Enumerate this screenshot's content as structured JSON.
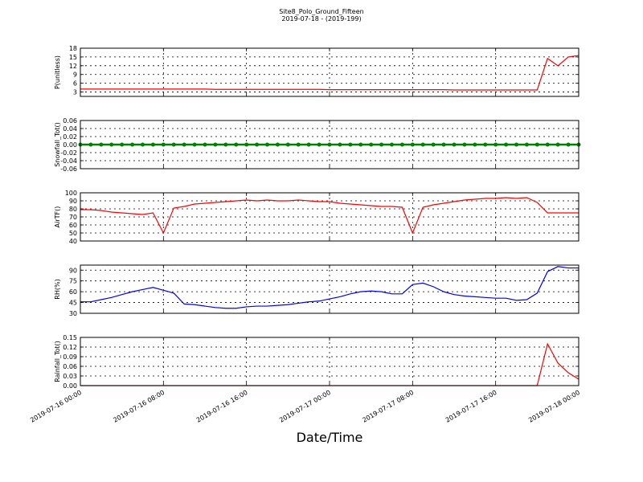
{
  "chart_data": [
    {
      "type": "line",
      "title": "Site8_Polo_Ground_Fifteen",
      "subtitle": "2019-07-18 - (2019-199)",
      "ylabel": "P(unitless)",
      "color": "#ff0000",
      "grid": true,
      "ylim": [
        1.5,
        18
      ],
      "yticks": [
        3,
        6,
        9,
        12,
        15,
        18
      ],
      "x": [
        "2019-07-16 00:00",
        "2019-07-16 01:00",
        "2019-07-16 02:00",
        "2019-07-16 03:00",
        "2019-07-16 04:00",
        "2019-07-16 05:00",
        "2019-07-16 06:00",
        "2019-07-16 07:00",
        "2019-07-16 08:00",
        "2019-07-16 09:00",
        "2019-07-16 10:00",
        "2019-07-16 11:00",
        "2019-07-16 12:00",
        "2019-07-16 13:00",
        "2019-07-16 14:00",
        "2019-07-16 15:00",
        "2019-07-16 16:00",
        "2019-07-16 17:00",
        "2019-07-16 18:00",
        "2019-07-16 19:00",
        "2019-07-16 20:00",
        "2019-07-16 21:00",
        "2019-07-16 22:00",
        "2019-07-16 23:00",
        "2019-07-17 00:00",
        "2019-07-17 01:00",
        "2019-07-17 02:00",
        "2019-07-17 03:00",
        "2019-07-17 04:00",
        "2019-07-17 05:00",
        "2019-07-17 06:00",
        "2019-07-17 07:00",
        "2019-07-17 08:00",
        "2019-07-17 09:00",
        "2019-07-17 10:00",
        "2019-07-17 11:00",
        "2019-07-17 12:00",
        "2019-07-17 13:00",
        "2019-07-17 14:00",
        "2019-07-17 15:00",
        "2019-07-17 16:00",
        "2019-07-17 17:00",
        "2019-07-17 18:00",
        "2019-07-17 19:00",
        "2019-07-17 20:00",
        "2019-07-17 21:00",
        "2019-07-17 22:00",
        "2019-07-17 23:00",
        "2019-07-18 00:00"
      ],
      "values": [
        4,
        4,
        4,
        4,
        4,
        4,
        4,
        4,
        4,
        4,
        4,
        4,
        4,
        3.9,
        3.9,
        3.9,
        3.9,
        3.9,
        3.9,
        3.9,
        3.9,
        3.9,
        3.9,
        3.9,
        3.8,
        3.8,
        3.8,
        3.8,
        3.8,
        3.8,
        3.8,
        3.8,
        3.8,
        3.8,
        3.8,
        3.8,
        3.7,
        3.7,
        3.7,
        3.7,
        3.7,
        3.7,
        3.7,
        3.7,
        3.7,
        14.5,
        12,
        15,
        15.5
      ]
    },
    {
      "type": "line",
      "ylabel": "Snowfall_Tot()",
      "color": "#008000",
      "grid": true,
      "marker": true,
      "ylim": [
        -0.06,
        0.06
      ],
      "yticks": [
        -0.06,
        -0.04,
        -0.02,
        {
          "value": 0,
          "label": "0.00"
        },
        0.02,
        0.04,
        0.06
      ],
      "x": [
        "2019-07-16 00:00",
        "2019-07-16 01:00",
        "2019-07-16 02:00",
        "2019-07-16 03:00",
        "2019-07-16 04:00",
        "2019-07-16 05:00",
        "2019-07-16 06:00",
        "2019-07-16 07:00",
        "2019-07-16 08:00",
        "2019-07-16 09:00",
        "2019-07-16 10:00",
        "2019-07-16 11:00",
        "2019-07-16 12:00",
        "2019-07-16 13:00",
        "2019-07-16 14:00",
        "2019-07-16 15:00",
        "2019-07-16 16:00",
        "2019-07-16 17:00",
        "2019-07-16 18:00",
        "2019-07-16 19:00",
        "2019-07-16 20:00",
        "2019-07-16 21:00",
        "2019-07-16 22:00",
        "2019-07-16 23:00",
        "2019-07-17 00:00",
        "2019-07-17 01:00",
        "2019-07-17 02:00",
        "2019-07-17 03:00",
        "2019-07-17 04:00",
        "2019-07-17 05:00",
        "2019-07-17 06:00",
        "2019-07-17 07:00",
        "2019-07-17 08:00",
        "2019-07-17 09:00",
        "2019-07-17 10:00",
        "2019-07-17 11:00",
        "2019-07-17 12:00",
        "2019-07-17 13:00",
        "2019-07-17 14:00",
        "2019-07-17 15:00",
        "2019-07-17 16:00",
        "2019-07-17 17:00",
        "2019-07-17 18:00",
        "2019-07-17 19:00",
        "2019-07-17 20:00",
        "2019-07-17 21:00",
        "2019-07-17 22:00",
        "2019-07-17 23:00",
        "2019-07-18 00:00"
      ],
      "values": [
        0,
        0,
        0,
        0,
        0,
        0,
        0,
        0,
        0,
        0,
        0,
        0,
        0,
        0,
        0,
        0,
        0,
        0,
        0,
        0,
        0,
        0,
        0,
        0,
        0,
        0,
        0,
        0,
        0,
        0,
        0,
        0,
        0,
        0,
        0,
        0,
        0,
        0,
        0,
        0,
        0,
        0,
        0,
        0,
        0,
        0,
        0,
        0,
        0
      ]
    },
    {
      "type": "line",
      "ylabel": "AirTF()",
      "color": "#ff0000",
      "grid": true,
      "ylim": [
        40,
        100
      ],
      "yticks": [
        40,
        50,
        60,
        70,
        80,
        90,
        100
      ],
      "x": [
        "2019-07-16 00:00",
        "2019-07-16 01:00",
        "2019-07-16 02:00",
        "2019-07-16 03:00",
        "2019-07-16 04:00",
        "2019-07-16 05:00",
        "2019-07-16 06:00",
        "2019-07-16 07:00",
        "2019-07-16 08:00",
        "2019-07-16 09:00",
        "2019-07-16 10:00",
        "2019-07-16 11:00",
        "2019-07-16 12:00",
        "2019-07-16 13:00",
        "2019-07-16 14:00",
        "2019-07-16 15:00",
        "2019-07-16 16:00",
        "2019-07-16 17:00",
        "2019-07-16 18:00",
        "2019-07-16 19:00",
        "2019-07-16 20:00",
        "2019-07-16 21:00",
        "2019-07-16 22:00",
        "2019-07-16 23:00",
        "2019-07-17 00:00",
        "2019-07-17 01:00",
        "2019-07-17 02:00",
        "2019-07-17 03:00",
        "2019-07-17 04:00",
        "2019-07-17 05:00",
        "2019-07-17 06:00",
        "2019-07-17 07:00",
        "2019-07-17 08:00",
        "2019-07-17 09:00",
        "2019-07-17 10:00",
        "2019-07-17 11:00",
        "2019-07-17 12:00",
        "2019-07-17 13:00",
        "2019-07-17 14:00",
        "2019-07-17 15:00",
        "2019-07-17 16:00",
        "2019-07-17 17:00",
        "2019-07-17 18:00",
        "2019-07-17 19:00",
        "2019-07-17 20:00",
        "2019-07-17 21:00",
        "2019-07-17 22:00",
        "2019-07-17 23:00",
        "2019-07-18 00:00"
      ],
      "values": [
        79,
        79,
        78,
        76,
        75,
        74,
        73,
        75,
        50,
        81,
        83,
        86,
        87,
        88,
        89,
        90,
        91,
        90,
        91,
        90,
        90,
        91,
        90,
        89,
        89,
        87,
        86,
        85,
        84,
        83,
        83,
        82,
        50,
        82,
        85,
        87,
        89,
        91,
        92,
        93,
        93,
        94,
        93,
        94,
        88,
        75,
        75,
        75,
        75
      ]
    },
    {
      "type": "line",
      "ylabel": "RH(%)",
      "color": "#0000ff",
      "grid": true,
      "ylim": [
        30,
        97
      ],
      "yticks": [
        30,
        45,
        60,
        75,
        90
      ],
      "x": [
        "2019-07-16 00:00",
        "2019-07-16 01:00",
        "2019-07-16 02:00",
        "2019-07-16 03:00",
        "2019-07-16 04:00",
        "2019-07-16 05:00",
        "2019-07-16 06:00",
        "2019-07-16 07:00",
        "2019-07-16 08:00",
        "2019-07-16 09:00",
        "2019-07-16 10:00",
        "2019-07-16 11:00",
        "2019-07-16 12:00",
        "2019-07-16 13:00",
        "2019-07-16 14:00",
        "2019-07-16 15:00",
        "2019-07-16 16:00",
        "2019-07-16 17:00",
        "2019-07-16 18:00",
        "2019-07-16 19:00",
        "2019-07-16 20:00",
        "2019-07-16 21:00",
        "2019-07-16 22:00",
        "2019-07-16 23:00",
        "2019-07-17 00:00",
        "2019-07-17 01:00",
        "2019-07-17 02:00",
        "2019-07-17 03:00",
        "2019-07-17 04:00",
        "2019-07-17 05:00",
        "2019-07-17 06:00",
        "2019-07-17 07:00",
        "2019-07-17 08:00",
        "2019-07-17 09:00",
        "2019-07-17 10:00",
        "2019-07-17 11:00",
        "2019-07-17 12:00",
        "2019-07-17 13:00",
        "2019-07-17 14:00",
        "2019-07-17 15:00",
        "2019-07-17 16:00",
        "2019-07-17 17:00",
        "2019-07-17 18:00",
        "2019-07-17 19:00",
        "2019-07-17 20:00",
        "2019-07-17 21:00",
        "2019-07-17 22:00",
        "2019-07-17 23:00",
        "2019-07-18 00:00"
      ],
      "values": [
        46,
        46,
        49,
        52,
        56,
        60,
        63,
        66,
        62,
        58,
        43,
        42,
        40,
        38,
        37,
        37,
        39,
        40,
        40,
        41,
        42,
        44,
        46,
        47,
        50,
        53,
        57,
        60,
        61,
        60,
        57,
        57,
        70,
        72,
        67,
        60,
        56,
        54,
        53,
        52,
        51,
        51,
        48,
        49,
        58,
        88,
        95,
        93,
        93
      ]
    },
    {
      "type": "line",
      "ylabel": "Rainfall_Tot()",
      "xlabel": "Date/Time",
      "color": "#ff0000",
      "grid": true,
      "ylim": [
        0,
        0.15
      ],
      "yticks": [
        {
          "value": 0,
          "label": "0.00"
        },
        0.03,
        0.06,
        0.09,
        0.12,
        0.15
      ],
      "xlim": [
        "2019-07-16 00:00",
        "2019-07-18 00:00"
      ],
      "xticks": [
        "2019-07-16 00:00",
        "2019-07-16 08:00",
        "2019-07-16 16:00",
        "2019-07-17 00:00",
        "2019-07-17 08:00",
        "2019-07-17 16:00",
        "2019-07-18 00:00"
      ],
      "x": [
        "2019-07-16 00:00",
        "2019-07-16 01:00",
        "2019-07-16 02:00",
        "2019-07-16 03:00",
        "2019-07-16 04:00",
        "2019-07-16 05:00",
        "2019-07-16 06:00",
        "2019-07-16 07:00",
        "2019-07-16 08:00",
        "2019-07-16 09:00",
        "2019-07-16 10:00",
        "2019-07-16 11:00",
        "2019-07-16 12:00",
        "2019-07-16 13:00",
        "2019-07-16 14:00",
        "2019-07-16 15:00",
        "2019-07-16 16:00",
        "2019-07-16 17:00",
        "2019-07-16 18:00",
        "2019-07-16 19:00",
        "2019-07-16 20:00",
        "2019-07-16 21:00",
        "2019-07-16 22:00",
        "2019-07-16 23:00",
        "2019-07-17 00:00",
        "2019-07-17 01:00",
        "2019-07-17 02:00",
        "2019-07-17 03:00",
        "2019-07-17 04:00",
        "2019-07-17 05:00",
        "2019-07-17 06:00",
        "2019-07-17 07:00",
        "2019-07-17 08:00",
        "2019-07-17 09:00",
        "2019-07-17 10:00",
        "2019-07-17 11:00",
        "2019-07-17 12:00",
        "2019-07-17 13:00",
        "2019-07-17 14:00",
        "2019-07-17 15:00",
        "2019-07-17 16:00",
        "2019-07-17 17:00",
        "2019-07-17 18:00",
        "2019-07-17 19:00",
        "2019-07-17 20:00",
        "2019-07-17 21:00",
        "2019-07-17 22:00",
        "2019-07-17 23:00",
        "2019-07-18 00:00"
      ],
      "values": [
        0,
        0,
        0,
        0,
        0,
        0,
        0,
        0,
        0,
        0,
        0,
        0,
        0,
        0,
        0,
        0,
        0,
        0,
        0,
        0,
        0,
        0,
        0,
        0,
        0,
        0,
        0,
        0,
        0,
        0,
        0,
        0,
        0,
        0,
        0,
        0,
        0,
        0,
        0,
        0,
        0,
        0,
        0,
        0,
        0,
        0.13,
        0.07,
        0.04,
        0.02
      ]
    }
  ]
}
